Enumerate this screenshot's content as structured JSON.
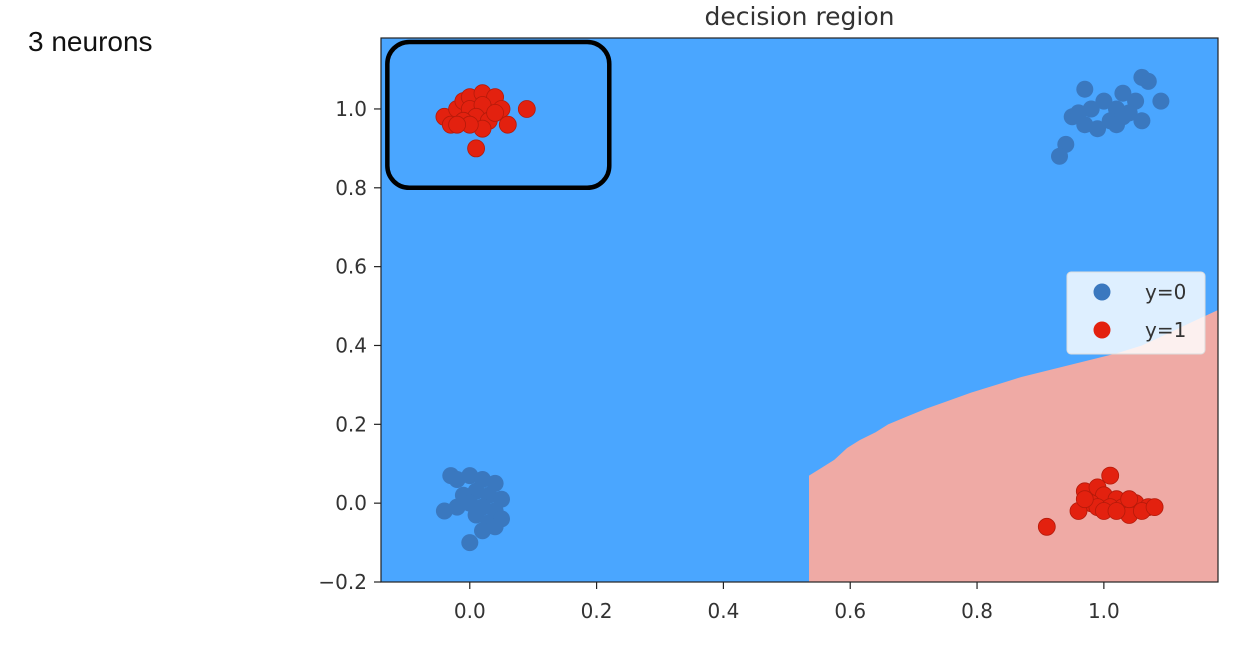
{
  "slide": {
    "label": "3 neurons"
  },
  "colors": {
    "region_y0": "#4aa6ff",
    "region_y1": "#efaaa5",
    "points_y0": "#3a78bf",
    "points_y1": "#e3210f",
    "highlight_box": "#000000"
  },
  "chart_data": {
    "type": "scatter",
    "title": "decision region",
    "xlabel": "",
    "ylabel": "",
    "xlim": [
      -0.14,
      1.18
    ],
    "ylim": [
      -0.2,
      1.18
    ],
    "x_ticks": [
      0.0,
      0.2,
      0.4,
      0.6,
      0.8,
      1.0
    ],
    "x_tick_labels": [
      "0.0",
      "0.2",
      "0.4",
      "0.6",
      "0.8",
      "1.0"
    ],
    "y_ticks": [
      -0.2,
      0.0,
      0.2,
      0.4,
      0.6,
      0.8,
      1.0
    ],
    "y_tick_labels": [
      "−0.2",
      "0.0",
      "0.2",
      "0.4",
      "0.6",
      "0.8",
      "1.0"
    ],
    "grid": false,
    "legend_position": "right",
    "background_region_class": "y=0",
    "region_y1_boundary": [
      [
        0.535,
        -0.2
      ],
      [
        0.535,
        0.07
      ],
      [
        0.555,
        0.09
      ],
      [
        0.575,
        0.11
      ],
      [
        0.595,
        0.14
      ],
      [
        0.615,
        0.16
      ],
      [
        0.64,
        0.18
      ],
      [
        0.66,
        0.2
      ],
      [
        0.69,
        0.22
      ],
      [
        0.72,
        0.24
      ],
      [
        0.755,
        0.26
      ],
      [
        0.79,
        0.28
      ],
      [
        0.83,
        0.3
      ],
      [
        0.87,
        0.32
      ],
      [
        0.92,
        0.34
      ],
      [
        0.97,
        0.36
      ],
      [
        1.02,
        0.38
      ],
      [
        1.06,
        0.4
      ],
      [
        1.1,
        0.43
      ],
      [
        1.14,
        0.46
      ],
      [
        1.18,
        0.49
      ],
      [
        1.18,
        -0.2
      ]
    ],
    "series": [
      {
        "name": "y=0",
        "points": [
          [
            -0.03,
            0.07
          ],
          [
            -0.02,
            0.06
          ],
          [
            0.0,
            0.07
          ],
          [
            0.02,
            0.06
          ],
          [
            0.04,
            0.05
          ],
          [
            0.01,
            0.03
          ],
          [
            -0.01,
            0.02
          ],
          [
            0.03,
            0.02
          ],
          [
            0.05,
            0.01
          ],
          [
            0.0,
            0.0
          ],
          [
            -0.02,
            -0.01
          ],
          [
            0.02,
            -0.01
          ],
          [
            0.04,
            -0.02
          ],
          [
            -0.04,
            -0.02
          ],
          [
            0.01,
            -0.03
          ],
          [
            0.03,
            -0.05
          ],
          [
            0.05,
            -0.04
          ],
          [
            0.02,
            -0.07
          ],
          [
            0.0,
            -0.1
          ],
          [
            0.04,
            -0.06
          ],
          [
            0.97,
            1.05
          ],
          [
            1.03,
            1.04
          ],
          [
            1.06,
            1.08
          ],
          [
            1.07,
            1.07
          ],
          [
            1.0,
            1.02
          ],
          [
            0.98,
            1.0
          ],
          [
            1.02,
            1.0
          ],
          [
            1.05,
            1.02
          ],
          [
            1.04,
            0.99
          ],
          [
            1.09,
            1.02
          ],
          [
            0.95,
            0.98
          ],
          [
            0.97,
            0.96
          ],
          [
            1.01,
            0.97
          ],
          [
            1.03,
            0.98
          ],
          [
            1.06,
            0.97
          ],
          [
            0.99,
            0.95
          ],
          [
            1.02,
            0.96
          ],
          [
            0.94,
            0.91
          ],
          [
            0.93,
            0.88
          ],
          [
            0.96,
            0.99
          ]
        ]
      },
      {
        "name": "y=1",
        "points": [
          [
            -0.04,
            0.98
          ],
          [
            -0.02,
            1.0
          ],
          [
            -0.01,
            1.02
          ],
          [
            0.0,
            1.03
          ],
          [
            0.02,
            1.04
          ],
          [
            0.04,
            1.03
          ],
          [
            0.0,
            1.0
          ],
          [
            0.02,
            1.01
          ],
          [
            0.01,
            0.98
          ],
          [
            -0.03,
            0.96
          ],
          [
            -0.01,
            0.97
          ],
          [
            0.03,
            0.97
          ],
          [
            0.05,
            1.0
          ],
          [
            0.09,
            1.0
          ],
          [
            0.06,
            0.96
          ],
          [
            0.02,
            0.95
          ],
          [
            0.0,
            0.96
          ],
          [
            -0.02,
            0.96
          ],
          [
            0.04,
            0.99
          ],
          [
            0.01,
            0.9
          ],
          [
            0.97,
            0.03
          ],
          [
            0.99,
            0.04
          ],
          [
            1.01,
            0.07
          ],
          [
            1.0,
            0.02
          ],
          [
            1.02,
            0.01
          ],
          [
            0.98,
            0.0
          ],
          [
            0.96,
            -0.02
          ],
          [
            0.99,
            -0.01
          ],
          [
            1.01,
            -0.01
          ],
          [
            1.03,
            -0.01
          ],
          [
            1.05,
            0.0
          ],
          [
            1.07,
            -0.01
          ],
          [
            1.04,
            -0.03
          ],
          [
            1.06,
            -0.02
          ],
          [
            1.08,
            -0.01
          ],
          [
            0.91,
            -0.06
          ],
          [
            1.0,
            -0.02
          ],
          [
            0.97,
            0.01
          ],
          [
            1.02,
            -0.02
          ],
          [
            1.04,
            0.01
          ]
        ]
      }
    ],
    "annotations": [
      {
        "type": "highlight-rect",
        "x0": -0.13,
        "x1": 0.22,
        "y0": 0.8,
        "y1": 1.17
      }
    ]
  }
}
